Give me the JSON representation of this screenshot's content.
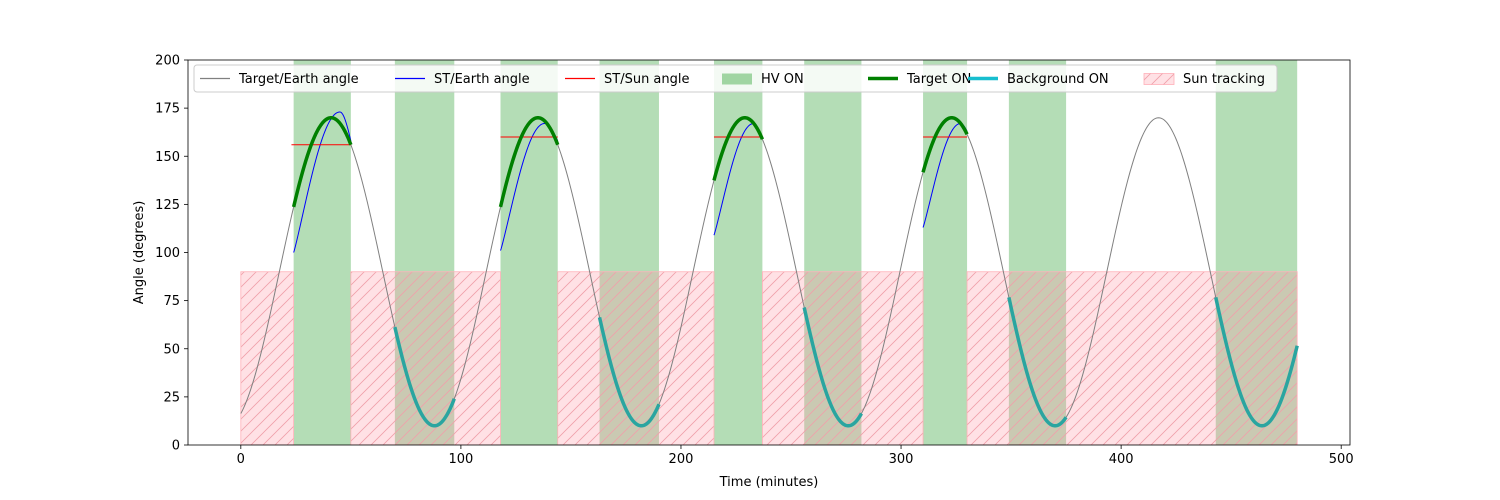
{
  "chart_data": {
    "type": "line",
    "xlabel": "Time (minutes)",
    "ylabel": "Angle (degrees)",
    "xlim": [
      -24,
      504
    ],
    "ylim": [
      0,
      200
    ],
    "xticks": [
      0,
      100,
      200,
      300,
      400,
      500
    ],
    "yticks": [
      0,
      25,
      50,
      75,
      100,
      125,
      150,
      175,
      200
    ],
    "grid": false,
    "legend_position": "top",
    "legend": [
      {
        "label": "Target/Earth angle",
        "kind": "line",
        "color": "#808080"
      },
      {
        "label": "ST/Earth angle",
        "kind": "line",
        "color": "#0000ff"
      },
      {
        "label": "ST/Sun angle",
        "kind": "line",
        "color": "#ff0000"
      },
      {
        "label": "HV ON",
        "kind": "patch",
        "color": "#4caf50"
      },
      {
        "label": "Target ON",
        "kind": "thick",
        "color": "#008000"
      },
      {
        "label": "Background ON",
        "kind": "thick",
        "color": "#17becf"
      },
      {
        "label": "Sun tracking",
        "kind": "hatch",
        "color": "#ff9aa8"
      }
    ],
    "orbit": {
      "period_min": 94,
      "peak_times": [
        41,
        135,
        229,
        323,
        417
      ],
      "max_deg": 170,
      "min_deg": 10,
      "x_start": 0,
      "x_end": 480
    },
    "hv_on_intervals": [
      [
        24,
        50
      ],
      [
        70,
        97
      ],
      [
        118,
        144
      ],
      [
        163,
        190
      ],
      [
        215,
        237
      ],
      [
        256,
        282
      ],
      [
        310,
        330
      ],
      [
        349,
        375
      ],
      [
        443,
        480
      ]
    ],
    "target_on_intervals": [
      [
        24,
        50
      ],
      [
        118,
        144
      ],
      [
        215,
        237
      ],
      [
        310,
        330
      ]
    ],
    "background_on_intervals": [
      [
        70,
        97
      ],
      [
        163,
        190
      ],
      [
        256,
        282
      ],
      [
        349,
        375
      ],
      [
        443,
        480
      ]
    ],
    "sun_tracking": {
      "y_max": 90,
      "intervals": [
        [
          0,
          24
        ],
        [
          50,
          118
        ],
        [
          144,
          215
        ],
        [
          237,
          310
        ],
        [
          330,
          480
        ]
      ]
    },
    "st_earth_segments": [
      {
        "x0": 24,
        "x1": 50,
        "y0": 100,
        "peak_x": 45,
        "peak_y": 173,
        "y1": 158
      },
      {
        "x0": 118,
        "x1": 144,
        "y0": 101,
        "peak_x": 138,
        "peak_y": 167,
        "y1": 158
      },
      {
        "x0": 215,
        "x1": 237,
        "y0": 109,
        "peak_x": 233,
        "peak_y": 167,
        "y1": 159
      },
      {
        "x0": 310,
        "x1": 330,
        "y0": 113,
        "peak_x": 327,
        "peak_y": 167,
        "y1": 163
      }
    ],
    "st_sun_segments": [
      {
        "x0": 23,
        "x1": 50,
        "y": 156
      },
      {
        "x0": 118,
        "x1": 144,
        "y": 160
      },
      {
        "x0": 215,
        "x1": 237,
        "y": 160
      },
      {
        "x0": 310,
        "x1": 330,
        "y": 160
      }
    ]
  }
}
